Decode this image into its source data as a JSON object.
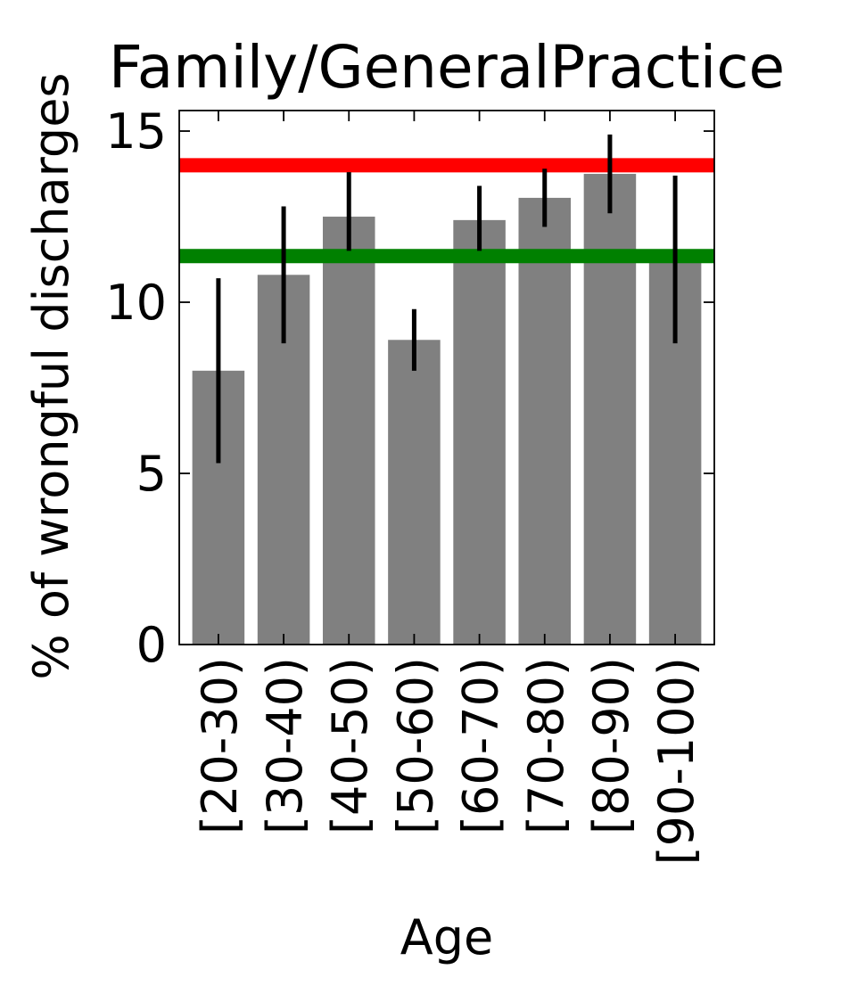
{
  "chart_data": {
    "type": "bar",
    "title": "Family/GeneralPractice",
    "xlabel": "Age",
    "ylabel": "% of wrongful discharges",
    "categories": [
      "[20-30)",
      "[30-40)",
      "[40-50)",
      "[50-60)",
      "[60-70)",
      "[70-80)",
      "[80-90)",
      "[90-100)"
    ],
    "values": [
      8.0,
      10.8,
      12.5,
      8.9,
      12.4,
      13.05,
      13.75,
      11.2
    ],
    "error_low": [
      5.3,
      8.8,
      11.5,
      8.0,
      11.5,
      12.2,
      12.6,
      8.8
    ],
    "error_high": [
      10.7,
      12.8,
      13.8,
      9.8,
      13.4,
      13.9,
      14.9,
      13.7
    ],
    "reference_lines": [
      {
        "value": 14.0,
        "color": "#ff0000"
      },
      {
        "value": 11.35,
        "color": "#008000"
      }
    ],
    "ylim": [
      0,
      15.6
    ],
    "yticks": [
      0,
      5,
      10,
      15
    ],
    "bar_color": "#808080",
    "errorbar_color": "#000000",
    "grid": false
  }
}
